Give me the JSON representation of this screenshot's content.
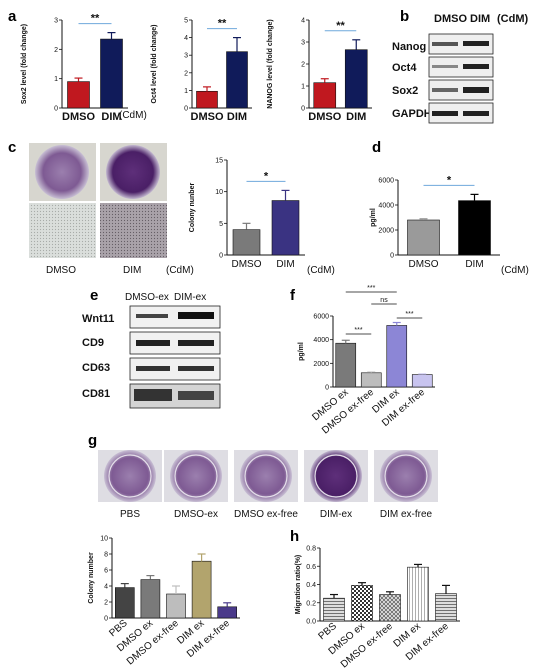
{
  "panels": {
    "a": "a",
    "b": "b",
    "c": "c",
    "d": "d",
    "e": "e",
    "f": "f",
    "g": "g",
    "h": "h"
  },
  "unit": "(CdM)",
  "colors": {
    "red": "#c0181f",
    "navy": "#101b5a",
    "gray": "#7a7a7a",
    "lavender": "#8c86d6",
    "paleLavender": "#c8c4ef",
    "olive": "#b2a46d",
    "purple": "#4a3a8a",
    "lightGray": "#bdbdbd",
    "sigLine": "#6fa8dc",
    "plate": "#8a5f9e",
    "plateRim": "#b9b4c4"
  },
  "blot_b": {
    "header": [
      "DMSO",
      "DIM"
    ],
    "unit": "(CdM)",
    "rows": [
      "Nanog",
      "Oct4",
      "Sox2",
      "GAPDH"
    ]
  },
  "blot_e": {
    "header": [
      "DMSO-ex",
      "DIM-ex"
    ],
    "rows": [
      "Wnt11",
      "CD9",
      "CD63",
      "CD81"
    ]
  },
  "images_c": {
    "labels": [
      "DMSO",
      "DIM"
    ],
    "unit": "(CdM)"
  },
  "images_g": {
    "labels": [
      "PBS",
      "DMSO-ex",
      "DMSO ex-free",
      "DIM-ex",
      "DIM ex-free"
    ]
  },
  "chart_data": [
    {
      "id": "a1",
      "type": "bar",
      "categories": [
        "DMSO",
        "DIM"
      ],
      "values": [
        0.9,
        2.35
      ],
      "errors": [
        0.12,
        0.22
      ],
      "ylabel": "Sox2 level (fold change)",
      "ylim": [
        0,
        3
      ],
      "yticks": [
        "0",
        "1",
        "2",
        "3"
      ],
      "sig": "**",
      "colors": [
        "#c0181f",
        "#101b5a"
      ]
    },
    {
      "id": "a2",
      "type": "bar",
      "categories": [
        "DMSO",
        "DIM"
      ],
      "values": [
        0.95,
        3.2
      ],
      "errors": [
        0.25,
        0.8
      ],
      "ylabel": "Oct4 level (fold change)",
      "ylim": [
        0,
        5
      ],
      "yticks": [
        "0",
        "1",
        "2",
        "3",
        "4",
        "5"
      ],
      "sig": "**",
      "colors": [
        "#c0181f",
        "#101b5a"
      ]
    },
    {
      "id": "a3",
      "type": "bar",
      "categories": [
        "DMSO",
        "DIM"
      ],
      "values": [
        1.15,
        2.65
      ],
      "errors": [
        0.18,
        0.45
      ],
      "ylabel": "NANOG level (fold change)",
      "ylim": [
        0,
        4
      ],
      "yticks": [
        "0",
        "1",
        "2",
        "3",
        "4"
      ],
      "sig": "**",
      "colors": [
        "#c0181f",
        "#101b5a"
      ]
    },
    {
      "id": "c",
      "type": "bar",
      "categories": [
        "DMSO",
        "DIM"
      ],
      "values": [
        4,
        8.6
      ],
      "errors": [
        1,
        1.6
      ],
      "ylabel": "Colony nunber",
      "ylim": [
        0,
        15
      ],
      "yticks": [
        "0",
        "5",
        "10",
        "15"
      ],
      "sig": "*",
      "colors": [
        "#7a7a7a",
        "#3a3382"
      ]
    },
    {
      "id": "d",
      "type": "bar",
      "categories": [
        "DMSO",
        "DIM"
      ],
      "values": [
        2800,
        4350
      ],
      "errors": [
        100,
        500
      ],
      "ylabel": "pg/ml",
      "ylim": [
        0,
        6000
      ],
      "yticks": [
        "0",
        "2000",
        "4000",
        "6000"
      ],
      "sig": "*",
      "colors": [
        "#9a9a9a",
        "#000000"
      ]
    },
    {
      "id": "f",
      "type": "bar",
      "categories": [
        "DMSO ex",
        "DMSO ex-free",
        "DIM ex",
        "DIM ex-free"
      ],
      "values": [
        3700,
        1200,
        5200,
        1050
      ],
      "errors": [
        250,
        60,
        250,
        50
      ],
      "ylabel": "pg/ml",
      "ylim": [
        0,
        6000
      ],
      "yticks": [
        "0",
        "2000",
        "4000",
        "6000"
      ],
      "colors": [
        "#7a7a7a",
        "#bdbdbd",
        "#8c86d6",
        "#c8c4ef"
      ],
      "comparisons": [
        {
          "from": 0,
          "to": 1,
          "label": "***"
        },
        {
          "from": 0,
          "to": 2,
          "label": "***"
        },
        {
          "from": 1,
          "to": 2,
          "label": "ns"
        },
        {
          "from": 2,
          "to": 3,
          "label": "***"
        }
      ]
    },
    {
      "id": "g",
      "type": "bar",
      "categories": [
        "PBS",
        "DMSO ex",
        "DMSO ex-free",
        "DIM ex",
        "DIM ex-free"
      ],
      "values": [
        3.8,
        4.8,
        3.0,
        7.1,
        1.4
      ],
      "errors": [
        0.5,
        0.5,
        1.0,
        0.9,
        0.5
      ],
      "ylabel": "Colony number",
      "ylim": [
        0,
        10
      ],
      "yticks": [
        "0",
        "2",
        "4",
        "6",
        "8",
        "10"
      ],
      "colors": [
        "#444444",
        "#7a7a7a",
        "#bdbdbd",
        "#b2a46d",
        "#4a3a8a"
      ]
    },
    {
      "id": "h",
      "type": "bar",
      "categories": [
        "PBS",
        "DMSO ex",
        "DMSO ex-free",
        "DIM ex",
        "DIM ex-free"
      ],
      "values": [
        0.25,
        0.39,
        0.29,
        0.59,
        0.3
      ],
      "errors": [
        0.04,
        0.03,
        0.03,
        0.03,
        0.09
      ],
      "ylabel": "Migration ratio(%)",
      "ylim": [
        0,
        0.8
      ],
      "yticks": [
        "0.0",
        "0.2",
        "0.4",
        "0.6",
        "0.8"
      ],
      "colors": [
        "#9a9a9a",
        "#555555",
        "#888888",
        "#ffffff",
        "#9a9a9a"
      ]
    }
  ]
}
